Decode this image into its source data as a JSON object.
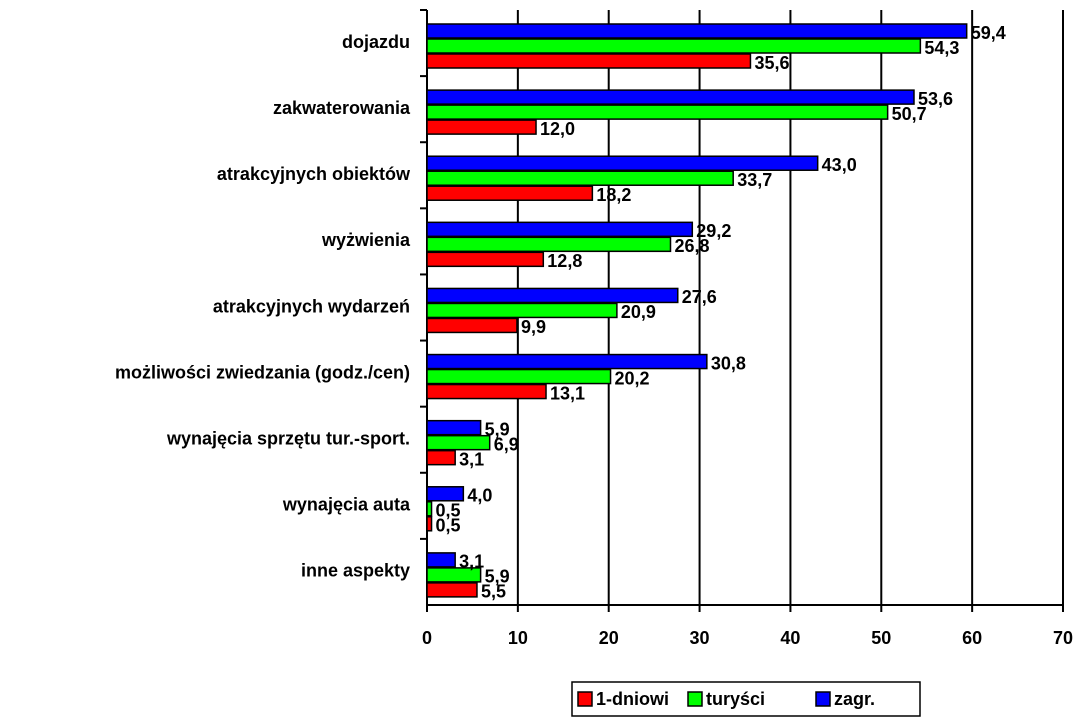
{
  "chart_data": {
    "type": "barh",
    "categories": [
      "dojazdu",
      "zakwaterowania",
      "atrakcyjnych obiektów",
      "wyżwienia",
      "atrakcyjnych wydarzeń",
      "możliwości zwiedzania (godz./cen)",
      "wynajęcia sprzętu tur.-sport.",
      "wynajęcia auta",
      "inne aspekty"
    ],
    "series": [
      {
        "name": "1-dniowi",
        "color": "#ff0000",
        "values": [
          35.6,
          12.0,
          18.2,
          12.8,
          9.9,
          13.1,
          3.1,
          0.5,
          5.5
        ],
        "value_labels": [
          "35,6",
          "12,0",
          "18,2",
          "12,8",
          "9,9",
          "13,1",
          "3,1",
          "0,5",
          "5,5"
        ]
      },
      {
        "name": "turyści",
        "color": "#00ff00",
        "values": [
          54.3,
          50.7,
          33.7,
          26.8,
          20.9,
          20.2,
          6.9,
          0.5,
          5.9
        ],
        "value_labels": [
          "54,3",
          "50,7",
          "33,7",
          "26,8",
          "20,9",
          "20,2",
          "6,9",
          "0,5",
          "5,9"
        ]
      },
      {
        "name": "zagr.",
        "color": "#0000ff",
        "values": [
          59.4,
          53.6,
          43.0,
          29.2,
          27.6,
          30.8,
          5.9,
          4.0,
          3.1
        ],
        "value_labels": [
          "59,4",
          "53,6",
          "43,0",
          "29,2",
          "27,6",
          "30,8",
          "5,9",
          "4,0",
          "3,1"
        ]
      }
    ],
    "xlim": [
      0,
      70
    ],
    "xticks": [
      0,
      10,
      20,
      30,
      40,
      50,
      60,
      70
    ],
    "grid": true,
    "legend": "bottom"
  }
}
